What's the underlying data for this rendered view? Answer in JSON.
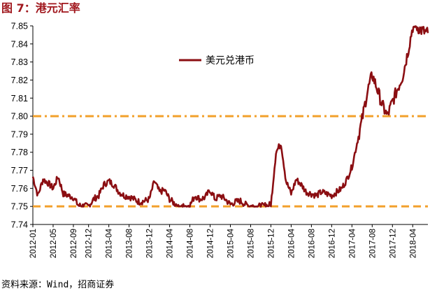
{
  "figure": {
    "title": "图 7：港元汇率",
    "source": "资料来源：Wind，招商证券"
  },
  "colors": {
    "title": "#a0171d",
    "series": "#8b0e12",
    "reference_line": "#f2a02b"
  },
  "chart_data": {
    "type": "line",
    "title": "",
    "xlabel": "",
    "ylabel": "",
    "ylim": [
      7.74,
      7.85
    ],
    "yticks": [
      "7.85",
      "7.84",
      "7.83",
      "7.82",
      "7.81",
      "7.80",
      "7.79",
      "7.78",
      "7.77",
      "7.76",
      "7.75",
      "7.74"
    ],
    "xticks": [
      "2012-01",
      "2012-05",
      "2012-09",
      "2012-12",
      "2013-04",
      "2013-08",
      "2013-12",
      "2014-04",
      "2014-08",
      "2014-12",
      "2015-04",
      "2015-08",
      "2015-12",
      "2016-04",
      "2016-08",
      "2016-12",
      "2017-04",
      "2017-08",
      "2017-12",
      "2018-04"
    ],
    "xlim": [
      "2012-01",
      "2018-07"
    ],
    "grid": false,
    "legend": "top-center",
    "reference_lines": [
      {
        "y": 7.8,
        "style": "dash-dot"
      },
      {
        "y": 7.75,
        "style": "dashed"
      }
    ],
    "series": [
      {
        "name": "美元兑港币",
        "points": [
          [
            "2012-01",
            7.7665
          ],
          [
            "2012-02",
            7.756
          ],
          [
            "2012-03",
            7.765
          ],
          [
            "2012-04",
            7.763
          ],
          [
            "2012-05",
            7.76
          ],
          [
            "2012-06",
            7.7665
          ],
          [
            "2012-07",
            7.757
          ],
          [
            "2012-08",
            7.756
          ],
          [
            "2012-09",
            7.755
          ],
          [
            "2012-10",
            7.7505
          ],
          [
            "2012-11",
            7.7502
          ],
          [
            "2012-12",
            7.7501
          ],
          [
            "2013-01",
            7.754
          ],
          [
            "2013-02",
            7.756
          ],
          [
            "2013-03",
            7.762
          ],
          [
            "2013-04",
            7.764
          ],
          [
            "2013-05",
            7.762
          ],
          [
            "2013-06",
            7.758
          ],
          [
            "2013-07",
            7.756
          ],
          [
            "2013-08",
            7.7555
          ],
          [
            "2013-09",
            7.754
          ],
          [
            "2013-10",
            7.7525
          ],
          [
            "2013-11",
            7.753
          ],
          [
            "2013-12",
            7.754
          ],
          [
            "2014-01",
            7.764
          ],
          [
            "2014-02",
            7.758
          ],
          [
            "2014-03",
            7.759
          ],
          [
            "2014-04",
            7.754
          ],
          [
            "2014-05",
            7.7515
          ],
          [
            "2014-06",
            7.7505
          ],
          [
            "2014-07",
            7.75
          ],
          [
            "2014-08",
            7.7505
          ],
          [
            "2014-09",
            7.756
          ],
          [
            "2014-10",
            7.754
          ],
          [
            "2014-11",
            7.755
          ],
          [
            "2014-12",
            7.759
          ],
          [
            "2015-01",
            7.754
          ],
          [
            "2015-02",
            7.756
          ],
          [
            "2015-03",
            7.754
          ],
          [
            "2015-04",
            7.751
          ],
          [
            "2015-05",
            7.7525
          ],
          [
            "2015-06",
            7.753
          ],
          [
            "2015-07",
            7.751
          ],
          [
            "2015-08",
            7.7502
          ],
          [
            "2015-09",
            7.75
          ],
          [
            "2015-10",
            7.75
          ],
          [
            "2015-11",
            7.7505
          ],
          [
            "2015-12",
            7.751
          ],
          [
            "2016-01",
            7.78
          ],
          [
            "2016-02",
            7.785
          ],
          [
            "2016-03",
            7.764
          ],
          [
            "2016-04",
            7.757
          ],
          [
            "2016-05",
            7.765
          ],
          [
            "2016-06",
            7.762
          ],
          [
            "2016-07",
            7.758
          ],
          [
            "2016-08",
            7.757
          ],
          [
            "2016-09",
            7.756
          ],
          [
            "2016-10",
            7.758
          ],
          [
            "2016-11",
            7.757
          ],
          [
            "2016-12",
            7.756
          ],
          [
            "2017-01",
            7.758
          ],
          [
            "2017-02",
            7.76
          ],
          [
            "2017-03",
            7.765
          ],
          [
            "2017-04",
            7.772
          ],
          [
            "2017-05",
            7.785
          ],
          [
            "2017-06",
            7.798
          ],
          [
            "2017-07",
            7.813
          ],
          [
            "2017-08",
            7.823
          ],
          [
            "2017-09",
            7.815
          ],
          [
            "2017-10",
            7.806
          ],
          [
            "2017-11",
            7.8
          ],
          [
            "2017-12",
            7.808
          ],
          [
            "2018-01",
            7.815
          ],
          [
            "2018-02",
            7.822
          ],
          [
            "2018-03",
            7.835
          ],
          [
            "2018-04",
            7.8495
          ],
          [
            "2018-05",
            7.8492
          ],
          [
            "2018-06",
            7.847
          ],
          [
            "2018-07",
            7.846
          ]
        ]
      }
    ]
  }
}
